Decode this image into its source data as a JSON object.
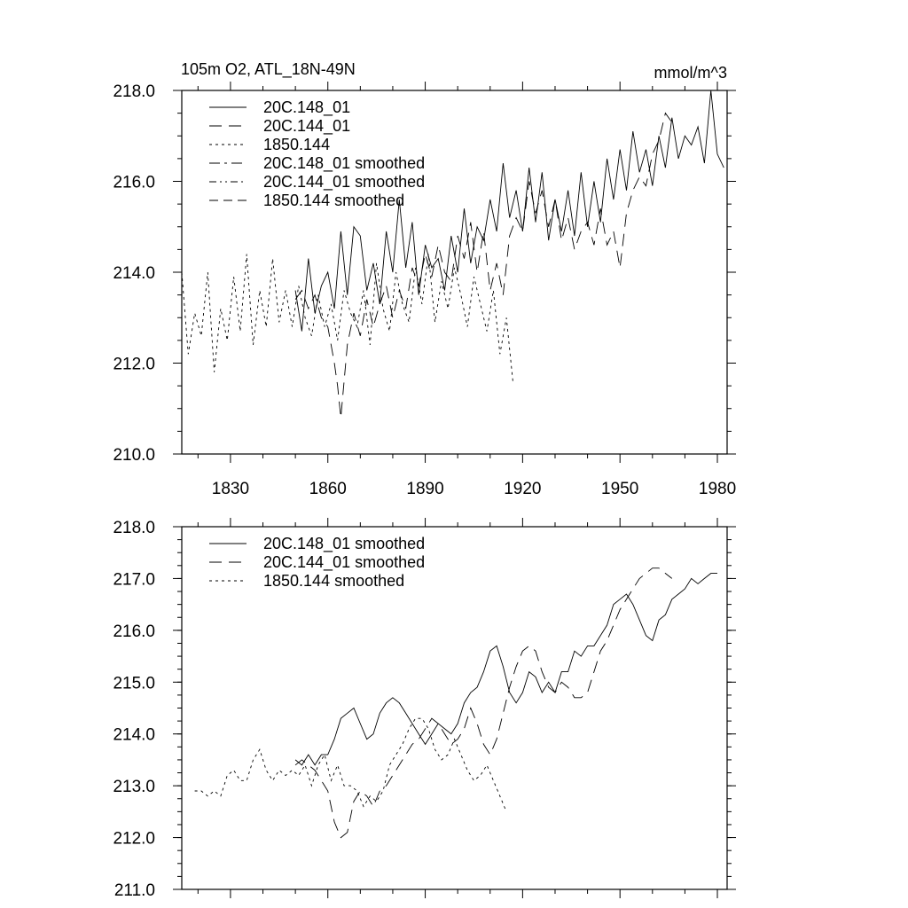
{
  "title_left": "105m O2, ATL_18N-49N",
  "units": "mmol/m^3",
  "chart_data": [
    {
      "type": "line",
      "xlim": [
        1815,
        1983
      ],
      "ylim": [
        210,
        218
      ],
      "yticks": [
        "210.0",
        "212.0",
        "214.0",
        "216.0",
        "218.0"
      ],
      "xticks": [
        "1830",
        "1860",
        "1890",
        "1920",
        "1950",
        "1980"
      ],
      "grid": false,
      "legend_position": "top-left",
      "series": [
        {
          "name": "20C.148_01",
          "dash": "none",
          "x": [
            1850,
            1852,
            1854,
            1856,
            1858,
            1860,
            1862,
            1864,
            1866,
            1868,
            1870,
            1872,
            1874,
            1876,
            1878,
            1880,
            1882,
            1884,
            1886,
            1888,
            1890,
            1892,
            1894,
            1896,
            1898,
            1900,
            1902,
            1904,
            1906,
            1908,
            1910,
            1912,
            1914,
            1916,
            1918,
            1920,
            1922,
            1924,
            1926,
            1928,
            1930,
            1932,
            1934,
            1936,
            1938,
            1940,
            1942,
            1944,
            1946,
            1948,
            1950,
            1952,
            1954,
            1956,
            1958,
            1960,
            1962,
            1964,
            1966,
            1968,
            1970,
            1972,
            1974,
            1976,
            1978,
            1980,
            1982
          ],
          "y": [
            213.6,
            212.7,
            214.3,
            213.1,
            213.7,
            214.0,
            213.2,
            214.9,
            213.5,
            215.0,
            214.8,
            213.6,
            214.2,
            213.3,
            214.9,
            214.0,
            215.6,
            214.1,
            215.1,
            213.5,
            214.6,
            214.1,
            214.3,
            213.6,
            214.8,
            214.0,
            215.4,
            214.2,
            215.0,
            214.7,
            215.6,
            214.9,
            216.4,
            215.2,
            215.8,
            214.9,
            216.3,
            215.1,
            216.2,
            214.7,
            215.6,
            214.9,
            215.8,
            214.8,
            216.2,
            215.0,
            216.0,
            215.1,
            216.5,
            215.6,
            216.7,
            215.8,
            217.1,
            216.2,
            216.7,
            215.9,
            217.0,
            216.3,
            217.4,
            216.5,
            217.0,
            216.8,
            217.2,
            216.4,
            218.0,
            216.6,
            216.3
          ]
        },
        {
          "name": "20C.144_01",
          "dash": "14 8",
          "x": [
            1850,
            1852,
            1854,
            1856,
            1858,
            1860,
            1862,
            1863,
            1864,
            1866,
            1868,
            1870,
            1872,
            1874,
            1876,
            1878,
            1880,
            1882,
            1884,
            1886,
            1888,
            1890,
            1892,
            1894,
            1896,
            1898,
            1900,
            1902,
            1904,
            1906,
            1908,
            1910,
            1912,
            1914,
            1916,
            1918,
            1920,
            1922,
            1924,
            1926,
            1928,
            1930,
            1932,
            1934,
            1936,
            1938,
            1940,
            1942,
            1944,
            1946,
            1948,
            1950,
            1952,
            1954,
            1956,
            1958,
            1960,
            1962,
            1964,
            1966
          ],
          "y": [
            213.4,
            213.6,
            213.2,
            213.5,
            213.0,
            212.8,
            212.0,
            211.5,
            210.8,
            212.4,
            213.1,
            212.6,
            213.4,
            212.8,
            213.3,
            213.7,
            213.0,
            213.6,
            213.2,
            214.1,
            213.7,
            214.4,
            213.9,
            214.6,
            214.0,
            213.8,
            214.8,
            214.3,
            215.1,
            214.0,
            214.9,
            213.6,
            214.2,
            213.5,
            214.8,
            215.2,
            214.9,
            216.0,
            215.3,
            215.8,
            215.0,
            215.6,
            214.7,
            215.2,
            214.5,
            214.9,
            215.1,
            214.6,
            215.4,
            214.6,
            214.9,
            214.1,
            215.3,
            215.8,
            216.1,
            215.9,
            216.6,
            216.9,
            217.5,
            217.3
          ]
        },
        {
          "name": "1850.144",
          "dash": "3 4",
          "x": [
            1815,
            1817,
            1819,
            1821,
            1823,
            1825,
            1827,
            1829,
            1831,
            1833,
            1835,
            1837,
            1839,
            1841,
            1843,
            1845,
            1847,
            1849,
            1851,
            1853,
            1855,
            1857,
            1859,
            1861,
            1863,
            1865,
            1867,
            1869,
            1871,
            1873,
            1875,
            1877,
            1879,
            1881,
            1883,
            1885,
            1887,
            1889,
            1891,
            1893,
            1895,
            1897,
            1899,
            1901,
            1903,
            1905,
            1907,
            1909,
            1911,
            1913,
            1915,
            1917
          ],
          "y": [
            214.0,
            212.2,
            213.1,
            212.6,
            214.0,
            211.8,
            213.2,
            212.5,
            213.9,
            212.7,
            214.4,
            212.4,
            213.6,
            212.8,
            214.3,
            212.9,
            213.6,
            212.8,
            213.7,
            213.0,
            212.6,
            213.5,
            212.8,
            213.3,
            212.5,
            213.6,
            213.1,
            212.8,
            213.6,
            212.4,
            214.2,
            213.2,
            212.7,
            214.0,
            213.3,
            212.9,
            214.1,
            213.3,
            214.4,
            212.9,
            213.8,
            213.2,
            214.1,
            213.5,
            212.8,
            213.9,
            213.3,
            212.7,
            213.6,
            212.2,
            213.0,
            211.6
          ]
        }
      ]
    },
    {
      "type": "line",
      "xlim": [
        1815,
        1983
      ],
      "ylim": [
        211,
        218
      ],
      "yticks": [
        "211.0",
        "212.0",
        "213.0",
        "214.0",
        "215.0",
        "216.0",
        "217.0",
        "218.0"
      ],
      "grid": false,
      "legend_position": "top-left",
      "series": [
        {
          "name": "20C.148_01 smoothed",
          "dash": "none",
          "x": [
            1850,
            1852,
            1854,
            1856,
            1858,
            1860,
            1862,
            1864,
            1866,
            1868,
            1870,
            1872,
            1874,
            1876,
            1878,
            1880,
            1882,
            1884,
            1886,
            1888,
            1890,
            1892,
            1894,
            1896,
            1898,
            1900,
            1902,
            1904,
            1906,
            1908,
            1910,
            1912,
            1914,
            1916,
            1918,
            1920,
            1922,
            1924,
            1926,
            1928,
            1930,
            1932,
            1934,
            1936,
            1938,
            1940,
            1942,
            1944,
            1946,
            1948,
            1950,
            1952,
            1954,
            1956,
            1958,
            1960,
            1962,
            1964,
            1966,
            1968,
            1970,
            1972,
            1974,
            1976,
            1978,
            1980
          ],
          "y": [
            213.5,
            213.4,
            213.6,
            213.4,
            213.6,
            213.6,
            213.9,
            214.3,
            214.4,
            214.5,
            214.2,
            213.9,
            214.0,
            214.4,
            214.6,
            214.7,
            214.6,
            214.4,
            214.2,
            214.0,
            213.8,
            214.0,
            214.2,
            214.1,
            214.0,
            214.2,
            214.6,
            214.8,
            214.9,
            215.2,
            215.6,
            215.7,
            215.3,
            214.8,
            214.6,
            214.8,
            215.2,
            215.1,
            214.8,
            215.0,
            214.8,
            215.2,
            215.2,
            215.6,
            215.5,
            215.7,
            215.7,
            215.9,
            216.1,
            216.5,
            216.6,
            216.7,
            216.5,
            216.2,
            215.9,
            215.8,
            216.2,
            216.3,
            216.6,
            216.7,
            216.8,
            217.0,
            216.9,
            217.0,
            217.1,
            217.1
          ]
        },
        {
          "name": "20C.144_01 smoothed",
          "dash": "14 8",
          "x": [
            1850,
            1852,
            1854,
            1856,
            1858,
            1860,
            1862,
            1864,
            1866,
            1868,
            1870,
            1872,
            1874,
            1876,
            1878,
            1880,
            1882,
            1884,
            1886,
            1888,
            1890,
            1892,
            1894,
            1896,
            1898,
            1900,
            1902,
            1904,
            1906,
            1908,
            1910,
            1912,
            1914,
            1916,
            1918,
            1920,
            1922,
            1924,
            1926,
            1928,
            1930,
            1932,
            1934,
            1936,
            1938,
            1940,
            1942,
            1944,
            1946,
            1948,
            1950,
            1952,
            1954,
            1956,
            1958,
            1960,
            1962,
            1964,
            1966
          ],
          "y": [
            213.4,
            213.5,
            213.4,
            213.3,
            213.1,
            212.9,
            212.3,
            212.0,
            212.1,
            212.7,
            212.9,
            212.8,
            212.6,
            212.9,
            213.0,
            213.2,
            213.4,
            213.6,
            213.8,
            213.9,
            214.1,
            214.3,
            214.2,
            214.0,
            213.8,
            213.9,
            214.1,
            214.5,
            214.2,
            213.8,
            213.6,
            213.9,
            214.4,
            214.9,
            215.3,
            215.6,
            215.7,
            215.6,
            215.2,
            214.9,
            214.8,
            215.0,
            214.9,
            214.7,
            214.7,
            214.8,
            215.2,
            215.6,
            215.8,
            216.1,
            216.4,
            216.6,
            216.8,
            217.0,
            217.1,
            217.2,
            217.2,
            217.1,
            217.0
          ]
        },
        {
          "name": "1850.144 smoothed",
          "dash": "3 4",
          "x": [
            1819,
            1821,
            1823,
            1825,
            1827,
            1829,
            1831,
            1833,
            1835,
            1837,
            1839,
            1841,
            1843,
            1845,
            1847,
            1849,
            1851,
            1853,
            1855,
            1857,
            1859,
            1861,
            1863,
            1865,
            1867,
            1869,
            1871,
            1873,
            1875,
            1877,
            1879,
            1881,
            1883,
            1885,
            1887,
            1889,
            1891,
            1893,
            1895,
            1897,
            1899,
            1901,
            1903,
            1905,
            1907,
            1909,
            1911,
            1913,
            1915
          ],
          "y": [
            212.9,
            212.9,
            212.8,
            212.9,
            212.8,
            213.2,
            213.3,
            213.1,
            213.1,
            213.5,
            213.7,
            213.3,
            213.1,
            213.3,
            213.2,
            213.3,
            213.2,
            213.4,
            213.0,
            213.4,
            213.6,
            213.1,
            213.4,
            213.0,
            213.0,
            212.9,
            212.6,
            212.8,
            212.7,
            212.9,
            213.4,
            213.6,
            213.8,
            214.1,
            214.3,
            214.3,
            214.1,
            213.7,
            213.5,
            213.6,
            213.9,
            213.6,
            213.3,
            213.1,
            213.2,
            213.4,
            213.1,
            212.8,
            212.5
          ]
        }
      ]
    }
  ],
  "legends": {
    "top": [
      "20C.148_01",
      "20C.144_01",
      "1850.144",
      "20C.148_01 smoothed",
      "20C.144_01 smoothed",
      "1850.144 smoothed"
    ],
    "bottom": [
      "20C.148_01 smoothed",
      "20C.144_01 smoothed",
      "1850.144 smoothed"
    ]
  }
}
